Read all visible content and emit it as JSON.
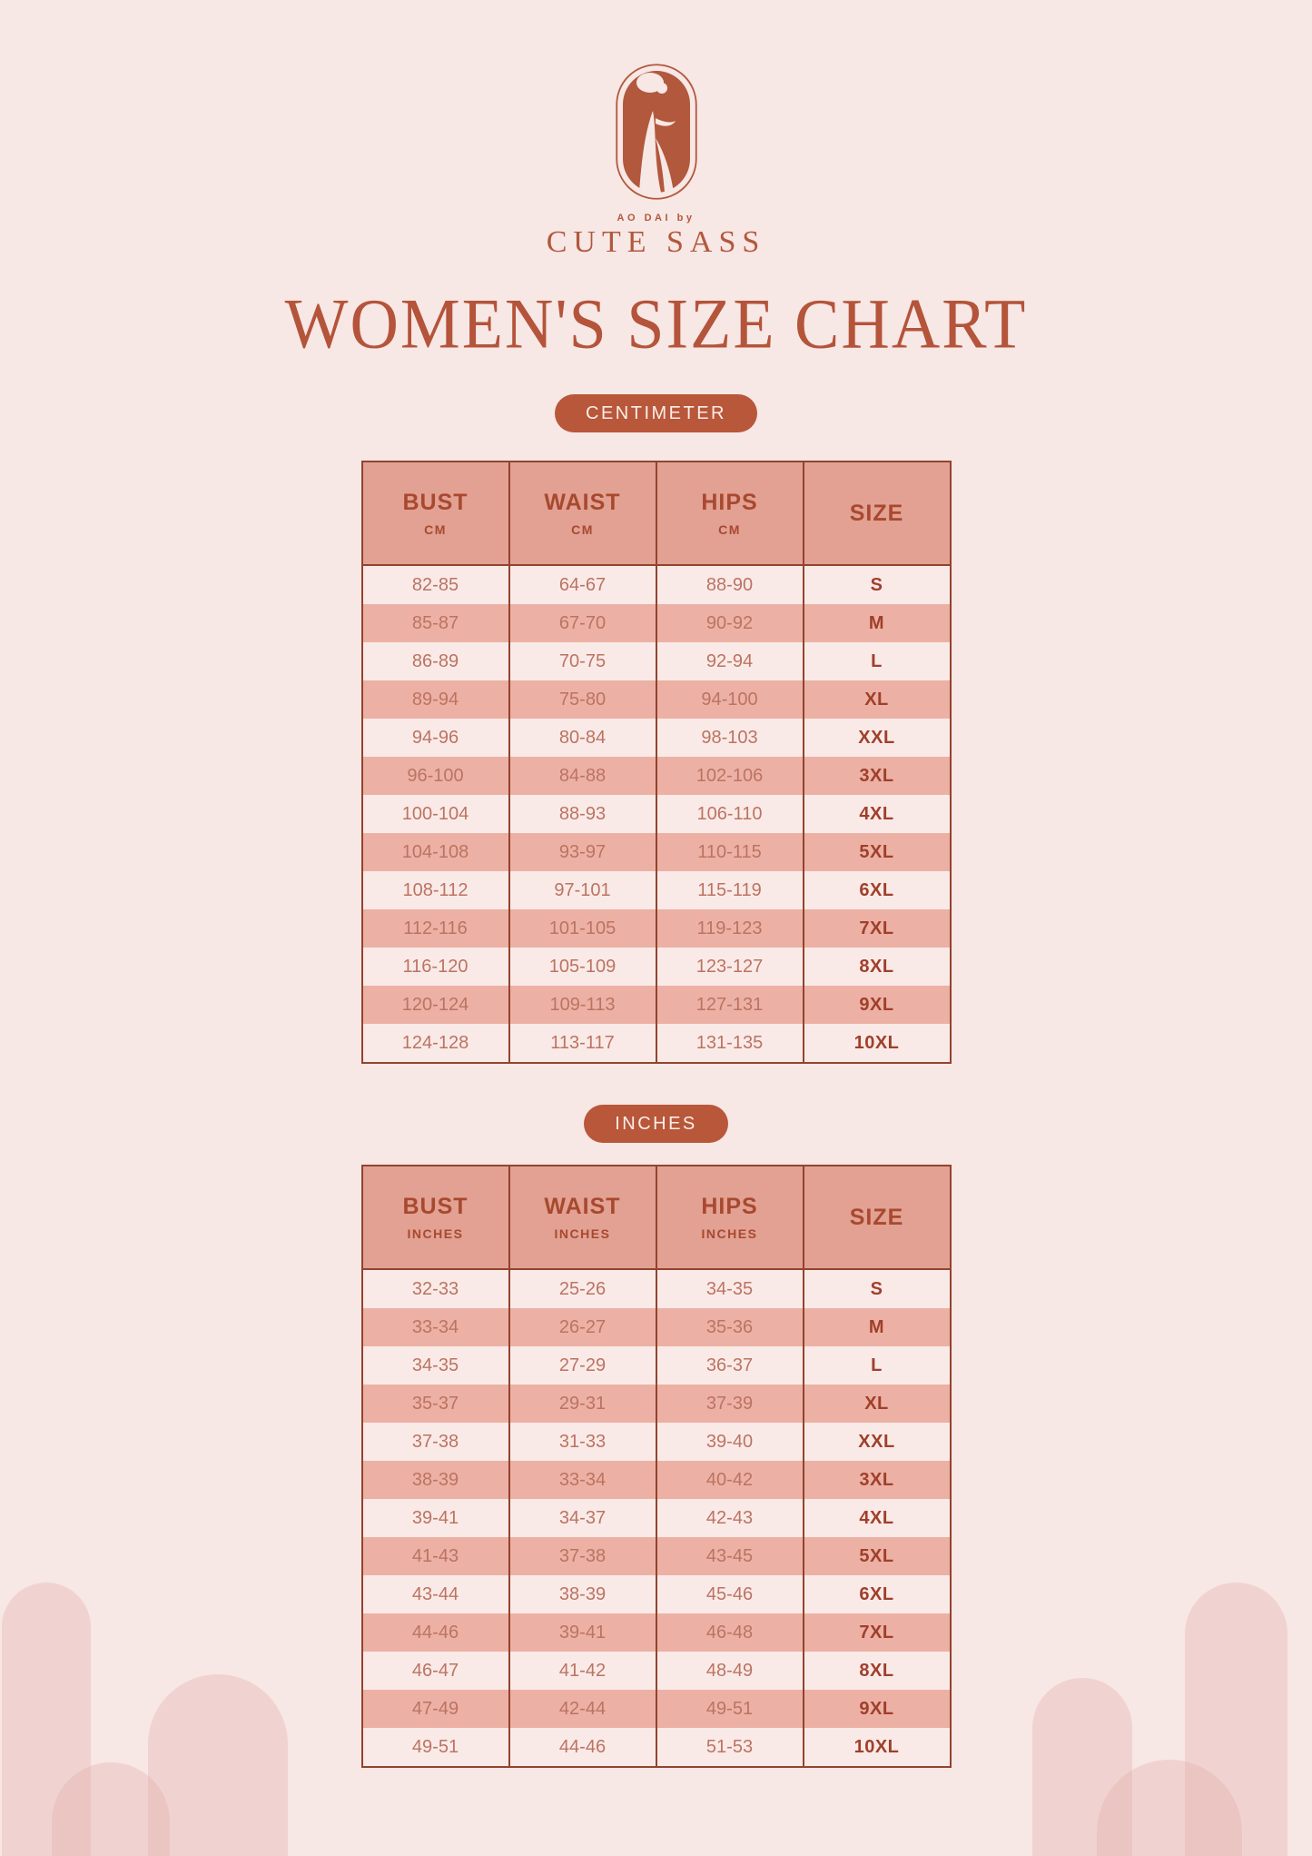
{
  "brand": {
    "tagline": "AO DAI by",
    "name": "CUTE SASS"
  },
  "page_title": "WOMEN'S SIZE CHART",
  "colors": {
    "background": "#f7e7e5",
    "accent_terracotta": "#b9573a",
    "table_border": "#93432e",
    "table_header_bg": "#e2a193",
    "row_light": "#f9eae7",
    "row_stripe": "#ecb1a4",
    "measurement_text": "#bc7362",
    "size_text": "#a03f2b",
    "badge_text": "#faeee9",
    "decoration_arch": "#f0d6d2"
  },
  "tables": [
    {
      "badge": "CENTIMETER",
      "columns": [
        {
          "label": "BUST",
          "unit": "CM"
        },
        {
          "label": "WAIST",
          "unit": "CM"
        },
        {
          "label": "HIPS",
          "unit": "CM"
        },
        {
          "label": "SIZE",
          "unit": ""
        }
      ],
      "rows": [
        [
          "82-85",
          "64-67",
          "88-90",
          "S"
        ],
        [
          "85-87",
          "67-70",
          "90-92",
          "M"
        ],
        [
          "86-89",
          "70-75",
          "92-94",
          "L"
        ],
        [
          "89-94",
          "75-80",
          "94-100",
          "XL"
        ],
        [
          "94-96",
          "80-84",
          "98-103",
          "XXL"
        ],
        [
          "96-100",
          "84-88",
          "102-106",
          "3XL"
        ],
        [
          "100-104",
          "88-93",
          "106-110",
          "4XL"
        ],
        [
          "104-108",
          "93-97",
          "110-115",
          "5XL"
        ],
        [
          "108-112",
          "97-101",
          "115-119",
          "6XL"
        ],
        [
          "112-116",
          "101-105",
          "119-123",
          "7XL"
        ],
        [
          "116-120",
          "105-109",
          "123-127",
          "8XL"
        ],
        [
          "120-124",
          "109-113",
          "127-131",
          "9XL"
        ],
        [
          "124-128",
          "113-117",
          "131-135",
          "10XL"
        ]
      ]
    },
    {
      "badge": "INCHES",
      "columns": [
        {
          "label": "BUST",
          "unit": "INCHES"
        },
        {
          "label": "WAIST",
          "unit": "INCHES"
        },
        {
          "label": "HIPS",
          "unit": "INCHES"
        },
        {
          "label": "SIZE",
          "unit": ""
        }
      ],
      "rows": [
        [
          "32-33",
          "25-26",
          "34-35",
          "S"
        ],
        [
          "33-34",
          "26-27",
          "35-36",
          "M"
        ],
        [
          "34-35",
          "27-29",
          "36-37",
          "L"
        ],
        [
          "35-37",
          "29-31",
          "37-39",
          "XL"
        ],
        [
          "37-38",
          "31-33",
          "39-40",
          "XXL"
        ],
        [
          "38-39",
          "33-34",
          "40-42",
          "3XL"
        ],
        [
          "39-41",
          "34-37",
          "42-43",
          "4XL"
        ],
        [
          "41-43",
          "37-38",
          "43-45",
          "5XL"
        ],
        [
          "43-44",
          "38-39",
          "45-46",
          "6XL"
        ],
        [
          "44-46",
          "39-41",
          "46-48",
          "7XL"
        ],
        [
          "46-47",
          "41-42",
          "48-49",
          "8XL"
        ],
        [
          "47-49",
          "42-44",
          "49-51",
          "9XL"
        ],
        [
          "49-51",
          "44-46",
          "51-53",
          "10XL"
        ]
      ]
    }
  ]
}
